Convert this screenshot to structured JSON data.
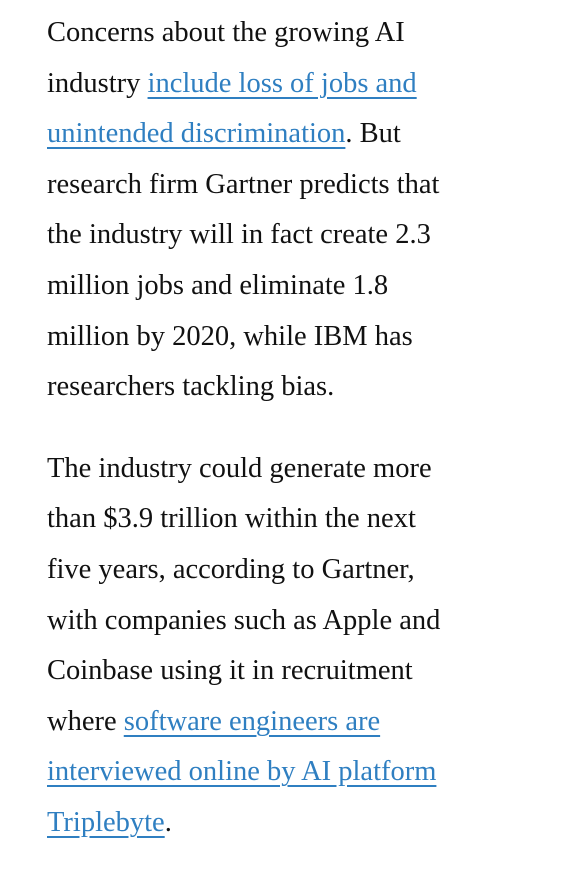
{
  "colors": {
    "text": "#111111",
    "link": "#2f7fc1",
    "background": "#ffffff"
  },
  "paragraphs": [
    {
      "lines": [
        [
          {
            "text": "Concerns about the growing AI"
          }
        ],
        [
          {
            "text": "industry "
          },
          {
            "text": "include loss of jobs and",
            "link": true
          }
        ],
        [
          {
            "text": "unintended discrimination",
            "link": true
          },
          {
            "text": ". But"
          }
        ],
        [
          {
            "text": "research firm Gartner predicts that"
          }
        ],
        [
          {
            "text": "the industry will in fact create 2.3"
          }
        ],
        [
          {
            "text": "million jobs and eliminate 1.8"
          }
        ],
        [
          {
            "text": "million by 2020, while IBM has"
          }
        ],
        [
          {
            "text": "researchers tackling bias."
          }
        ]
      ]
    },
    {
      "lines": [
        [
          {
            "text": "The industry could generate more"
          }
        ],
        [
          {
            "text": "than $3.9 trillion within the next"
          }
        ],
        [
          {
            "text": "five years, according to Gartner,"
          }
        ],
        [
          {
            "text": "with companies such as Apple and"
          }
        ],
        [
          {
            "text": "Coinbase using it in recruitment"
          }
        ],
        [
          {
            "text": "where "
          },
          {
            "text": "software engineers are",
            "link": true
          }
        ],
        [
          {
            "text": "interviewed online by AI platform",
            "link": true
          }
        ],
        [
          {
            "text": "Triplebyte",
            "link": true
          },
          {
            "text": "."
          }
        ]
      ]
    }
  ]
}
